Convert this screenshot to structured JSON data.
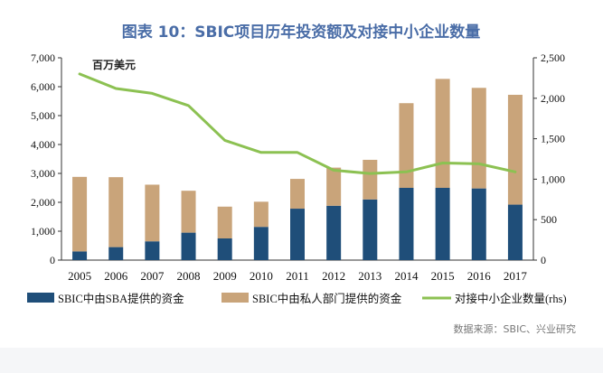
{
  "chart_data": {
    "type": "bar",
    "title": "图表 10：SBIC项目历年投资额及对接中小企业数量",
    "unit_label": "百万美元",
    "categories": [
      "2005",
      "2006",
      "2007",
      "2008",
      "2009",
      "2010",
      "2011",
      "2012",
      "2013",
      "2014",
      "2015",
      "2016",
      "2017"
    ],
    "y_ticks": [
      "0",
      "1,000",
      "2,000",
      "3,000",
      "4,000",
      "5,000",
      "6,000",
      "7,000"
    ],
    "y2_ticks": [
      "0",
      "500",
      "1,000",
      "1,500",
      "2,000",
      "2,500"
    ],
    "ylim": [
      0,
      7000
    ],
    "y2lim": [
      0,
      2500
    ],
    "series": [
      {
        "name": "SBIC中由SBA提供的资金",
        "type": "bar",
        "stack": "funds",
        "color": "#1f4e79",
        "values": [
          300,
          450,
          650,
          950,
          750,
          1150,
          1780,
          1880,
          2100,
          2500,
          2500,
          2480,
          1920
        ]
      },
      {
        "name": "SBIC中由私人部门提供的资金",
        "type": "bar",
        "stack": "funds",
        "color": "#c9a47a",
        "values": [
          2580,
          2420,
          1960,
          1450,
          1100,
          870,
          1030,
          1320,
          1370,
          2930,
          3770,
          3480,
          3800
        ]
      },
      {
        "name": "对接中小企业数量(rhs)",
        "type": "line",
        "axis": "right",
        "color": "#8cc152",
        "values": [
          2300,
          2120,
          2060,
          1910,
          1480,
          1330,
          1330,
          1110,
          1070,
          1090,
          1200,
          1190,
          1090
        ]
      }
    ],
    "source": "数据来源：SBIC、兴业研究"
  }
}
